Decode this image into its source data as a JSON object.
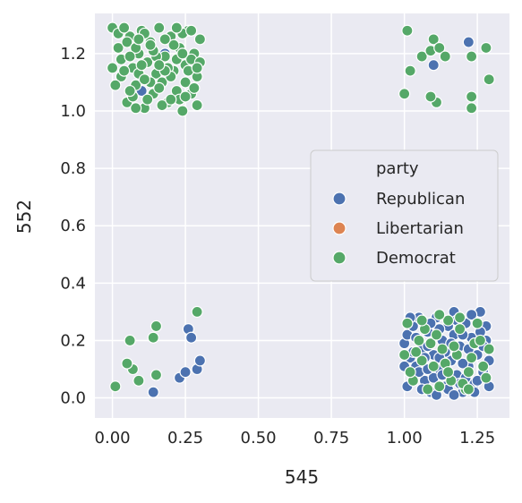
{
  "chart_data": {
    "type": "scatter",
    "xlabel": "545",
    "ylabel": "552",
    "xlim": [
      -0.06,
      1.36
    ],
    "ylim": [
      -0.07,
      1.34
    ],
    "xticks": [
      0.0,
      0.25,
      0.5,
      0.75,
      1.0,
      1.25
    ],
    "xtick_labels": [
      "0.00",
      "0.25",
      "0.50",
      "0.75",
      "1.00",
      "1.25"
    ],
    "yticks": [
      0.0,
      0.2,
      0.4,
      0.6,
      0.8,
      1.0,
      1.2
    ],
    "ytick_labels": [
      "0.0",
      "0.2",
      "0.4",
      "0.6",
      "0.8",
      "1.0",
      "1.2"
    ],
    "grid": true,
    "legend": {
      "title": "party",
      "placement": "center-right",
      "entries": [
        "Republican",
        "Libertarian",
        "Democrat"
      ]
    },
    "colors": {
      "Republican": "#4c72b0",
      "Libertarian": "#dd8452",
      "Democrat": "#55a868",
      "background": "#eaeaf2",
      "grid": "#ffffff"
    },
    "series": [
      {
        "name": "Republican",
        "points": [
          [
            0.14,
            0.02
          ],
          [
            0.23,
            0.07
          ],
          [
            0.25,
            0.09
          ],
          [
            0.29,
            0.1
          ],
          [
            0.3,
            0.13
          ],
          [
            0.26,
            0.24
          ],
          [
            0.27,
            0.21
          ],
          [
            0.1,
            1.07
          ],
          [
            0.18,
            1.2
          ],
          [
            1.1,
            1.16
          ],
          [
            1.22,
            1.24
          ],
          [
            1.0,
            0.19
          ],
          [
            1.01,
            0.22
          ],
          [
            1.02,
            0.14
          ],
          [
            1.03,
            0.25
          ],
          [
            1.04,
            0.11
          ],
          [
            1.05,
            0.28
          ],
          [
            1.06,
            0.17
          ],
          [
            1.07,
            0.06
          ],
          [
            1.08,
            0.23
          ],
          [
            1.09,
            0.02
          ],
          [
            1.1,
            0.15
          ],
          [
            1.11,
            0.28
          ],
          [
            1.12,
            0.1
          ],
          [
            1.13,
            0.2
          ],
          [
            1.14,
            0.04
          ],
          [
            1.15,
            0.25
          ],
          [
            1.16,
            0.13
          ],
          [
            1.17,
            0.3
          ],
          [
            1.18,
            0.08
          ],
          [
            1.19,
            0.18
          ],
          [
            1.2,
            0.02
          ],
          [
            1.21,
            0.26
          ],
          [
            1.22,
            0.11
          ],
          [
            1.23,
            0.21
          ],
          [
            1.24,
            0.05
          ],
          [
            1.25,
            0.15
          ],
          [
            1.26,
            0.3
          ],
          [
            1.27,
            0.09
          ],
          [
            1.28,
            0.2
          ],
          [
            1.29,
            0.13
          ],
          [
            1.01,
            0.04
          ],
          [
            1.04,
            0.21
          ],
          [
            1.07,
            0.14
          ],
          [
            1.1,
            0.07
          ],
          [
            1.12,
            0.24
          ],
          [
            1.15,
            0.03
          ],
          [
            1.18,
            0.27
          ],
          [
            1.2,
            0.12
          ],
          [
            1.23,
            0.29
          ],
          [
            1.25,
            0.06
          ],
          [
            1.28,
            0.25
          ],
          [
            1.02,
            0.28
          ],
          [
            1.05,
            0.09
          ],
          [
            1.08,
            0.18
          ],
          [
            1.11,
            0.01
          ],
          [
            1.14,
            0.16
          ],
          [
            1.17,
            0.22
          ],
          [
            1.19,
            0.05
          ],
          [
            1.22,
            0.17
          ],
          [
            1.24,
            0.02
          ],
          [
            1.27,
            0.18
          ],
          [
            1.03,
            0.16
          ],
          [
            1.06,
            0.03
          ],
          [
            1.09,
            0.26
          ],
          [
            1.13,
            0.08
          ],
          [
            1.16,
            0.19
          ],
          [
            1.21,
            0.07
          ],
          [
            1.26,
            0.23
          ],
          [
            1.29,
            0.04
          ],
          [
            1.0,
            0.11
          ],
          [
            1.12,
            0.14
          ],
          [
            1.2,
            0.22
          ],
          [
            1.17,
            0.01
          ],
          [
            1.08,
            0.1
          ]
        ]
      },
      {
        "name": "Libertarian",
        "points": []
      },
      {
        "name": "Democrat",
        "points": [
          [
            0.01,
            0.04
          ],
          [
            0.06,
            0.2
          ],
          [
            0.07,
            0.1
          ],
          [
            0.09,
            0.06
          ],
          [
            0.14,
            0.21
          ],
          [
            0.15,
            0.25
          ],
          [
            0.15,
            0.08
          ],
          [
            0.29,
            0.3
          ],
          [
            0.05,
            0.12
          ],
          [
            0.0,
            1.29
          ],
          [
            0.02,
            1.22
          ],
          [
            0.03,
            1.12
          ],
          [
            0.05,
            1.03
          ],
          [
            0.06,
            1.26
          ],
          [
            0.07,
            1.15
          ],
          [
            0.08,
            1.09
          ],
          [
            0.09,
            1.2
          ],
          [
            0.1,
            1.28
          ],
          [
            0.11,
            1.01
          ],
          [
            0.12,
            1.17
          ],
          [
            0.13,
            1.24
          ],
          [
            0.14,
            1.06
          ],
          [
            0.15,
            1.13
          ],
          [
            0.16,
            1.29
          ],
          [
            0.17,
            1.1
          ],
          [
            0.18,
            1.19
          ],
          [
            0.19,
            1.03
          ],
          [
            0.2,
            1.26
          ],
          [
            0.21,
            1.14
          ],
          [
            0.22,
            1.07
          ],
          [
            0.23,
            1.22
          ],
          [
            0.24,
            1.0
          ],
          [
            0.25,
            1.16
          ],
          [
            0.26,
            1.28
          ],
          [
            0.27,
            1.06
          ],
          [
            0.28,
            1.2
          ],
          [
            0.29,
            1.12
          ],
          [
            0.3,
            1.25
          ],
          [
            0.01,
            1.09
          ],
          [
            0.03,
            1.18
          ],
          [
            0.05,
            1.24
          ],
          [
            0.07,
            1.05
          ],
          [
            0.09,
            1.13
          ],
          [
            0.11,
            1.27
          ],
          [
            0.13,
            1.1
          ],
          [
            0.15,
            1.19
          ],
          [
            0.17,
            1.02
          ],
          [
            0.19,
            1.15
          ],
          [
            0.21,
            1.23
          ],
          [
            0.23,
            1.04
          ],
          [
            0.25,
            1.1
          ],
          [
            0.27,
            1.18
          ],
          [
            0.29,
            1.02
          ],
          [
            0.02,
            1.27
          ],
          [
            0.04,
            1.14
          ],
          [
            0.06,
            1.07
          ],
          [
            0.08,
            1.22
          ],
          [
            0.1,
            1.16
          ],
          [
            0.12,
            1.04
          ],
          [
            0.14,
            1.21
          ],
          [
            0.16,
            1.08
          ],
          [
            0.18,
            1.25
          ],
          [
            0.2,
            1.12
          ],
          [
            0.22,
            1.18
          ],
          [
            0.24,
            1.27
          ],
          [
            0.26,
            1.14
          ],
          [
            0.28,
            1.08
          ],
          [
            0.3,
            1.17
          ],
          [
            0.0,
            1.15
          ],
          [
            0.04,
            1.29
          ],
          [
            0.08,
            1.01
          ],
          [
            0.13,
            1.23
          ],
          [
            0.18,
            1.14
          ],
          [
            0.24,
            1.2
          ],
          [
            0.27,
            1.28
          ],
          [
            0.11,
            1.11
          ],
          [
            0.2,
            1.04
          ],
          [
            0.06,
            1.19
          ],
          [
            0.16,
            1.16
          ],
          [
            0.25,
            1.05
          ],
          [
            0.22,
            1.29
          ],
          [
            0.09,
            1.25
          ],
          [
            0.29,
            1.15
          ],
          [
            1.01,
            1.28
          ],
          [
            1.02,
            1.14
          ],
          [
            1.0,
            1.06
          ],
          [
            1.06,
            1.19
          ],
          [
            1.09,
            1.21
          ],
          [
            1.1,
            1.25
          ],
          [
            1.11,
            1.03
          ],
          [
            1.12,
            1.22
          ],
          [
            1.14,
            1.19
          ],
          [
            1.09,
            1.05
          ],
          [
            1.23,
            1.19
          ],
          [
            1.23,
            1.05
          ],
          [
            1.23,
            1.01
          ],
          [
            1.28,
            1.22
          ],
          [
            1.29,
            1.11
          ],
          [
            1.01,
            0.26
          ],
          [
            1.03,
            0.06
          ],
          [
            1.06,
            0.13
          ],
          [
            1.09,
            0.19
          ],
          [
            1.12,
            0.04
          ],
          [
            1.15,
            0.27
          ],
          [
            1.18,
            0.15
          ],
          [
            1.21,
            0.03
          ],
          [
            1.24,
            0.19
          ],
          [
            1.27,
            0.11
          ],
          [
            1.04,
            0.16
          ],
          [
            1.07,
            0.24
          ],
          [
            1.1,
            0.11
          ],
          [
            1.13,
            0.17
          ],
          [
            1.16,
            0.06
          ],
          [
            1.19,
            0.24
          ],
          [
            1.22,
            0.09
          ],
          [
            1.25,
            0.26
          ],
          [
            1.28,
            0.07
          ],
          [
            1.02,
            0.09
          ],
          [
            1.05,
            0.2
          ],
          [
            1.08,
            0.03
          ],
          [
            1.11,
            0.22
          ],
          [
            1.14,
            0.12
          ],
          [
            1.17,
            0.18
          ],
          [
            1.2,
            0.05
          ],
          [
            1.23,
            0.14
          ],
          [
            1.26,
            0.2
          ],
          [
            1.29,
            0.17
          ],
          [
            1.0,
            0.15
          ],
          [
            1.15,
            0.09
          ],
          [
            1.19,
            0.28
          ],
          [
            1.06,
            0.27
          ],
          [
            1.22,
            0.03
          ],
          [
            1.12,
            0.29
          ]
        ]
      }
    ]
  }
}
